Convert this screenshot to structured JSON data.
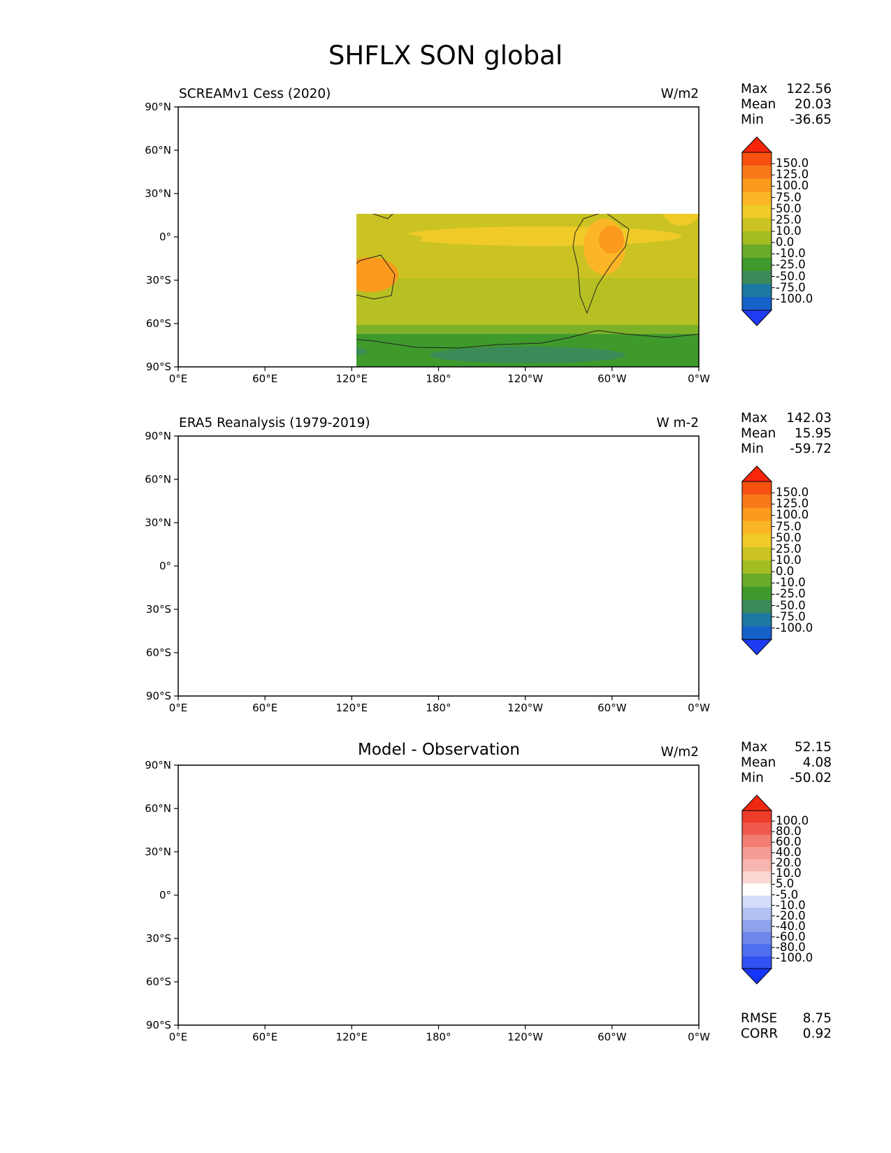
{
  "figure_title": "SHFLX SON global",
  "x_ticks": [
    "0°E",
    "60°E",
    "120°E",
    "180°",
    "120°W",
    "60°W",
    "0°W"
  ],
  "y_ticks": [
    "90°N",
    "60°N",
    "30°N",
    "0°",
    "30°S",
    "60°S",
    "90°S"
  ],
  "colors": {
    "seq": [
      "#1f3cf5",
      "#1560c9",
      "#1d78a3",
      "#3c8a58",
      "#3f9a2c",
      "#6aac2a",
      "#a4bd22",
      "#cbc323",
      "#f0cb28",
      "#fbb526",
      "#fb9a1c",
      "#f9781a",
      "#f75111",
      "#f7260b"
    ],
    "diff": [
      "#1435fa",
      "#3253f4",
      "#4f6ef0",
      "#6d87eb",
      "#8ea3ec",
      "#b3c1f2",
      "#d3dcf8",
      "#ffffff",
      "#fbd6d2",
      "#f7b6ae",
      "#f49c93",
      "#f37d73",
      "#f05a4e",
      "#ee3c2b",
      "#f0280f"
    ]
  },
  "panels": [
    {
      "title": "SCREAMv1 Cess (2020)",
      "units": "W/m2",
      "stats": {
        "max_label": "Max",
        "max": "122.56",
        "mean_label": "Mean",
        "mean": "20.03",
        "min_label": "Min",
        "min": "-36.65"
      },
      "colorbar": [
        "150.0",
        "125.0",
        "100.0",
        "75.0",
        "50.0",
        "25.0",
        "10.0",
        "0.0",
        "-10.0",
        "-25.0",
        "-50.0",
        "-75.0",
        "-100.0"
      ]
    },
    {
      "title": "ERA5 Reanalysis (1979-2019)",
      "units": "W m-2",
      "stats": {
        "max_label": "Max",
        "max": "142.03",
        "mean_label": "Mean",
        "mean": "15.95",
        "min_label": "Min",
        "min": "-59.72"
      },
      "colorbar": [
        "150.0",
        "125.0",
        "100.0",
        "75.0",
        "50.0",
        "25.0",
        "10.0",
        "0.0",
        "-10.0",
        "-25.0",
        "-50.0",
        "-75.0",
        "-100.0"
      ]
    },
    {
      "title": "Model - Observation",
      "units": "W/m2",
      "stats": {
        "max_label": "Max",
        "max": "52.15",
        "mean_label": "Mean",
        "mean": "4.08",
        "min_label": "Min",
        "min": "-50.02"
      },
      "colorbar": [
        "100.0",
        "80.0",
        "60.0",
        "40.0",
        "20.0",
        "10.0",
        "5.0",
        "-5.0",
        "-10.0",
        "-20.0",
        "-40.0",
        "-60.0",
        "-80.0",
        "-100.0"
      ],
      "metrics": {
        "rmse_label": "RMSE",
        "rmse": "8.75",
        "corr_label": "CORR",
        "corr": "0.92"
      }
    }
  ]
}
